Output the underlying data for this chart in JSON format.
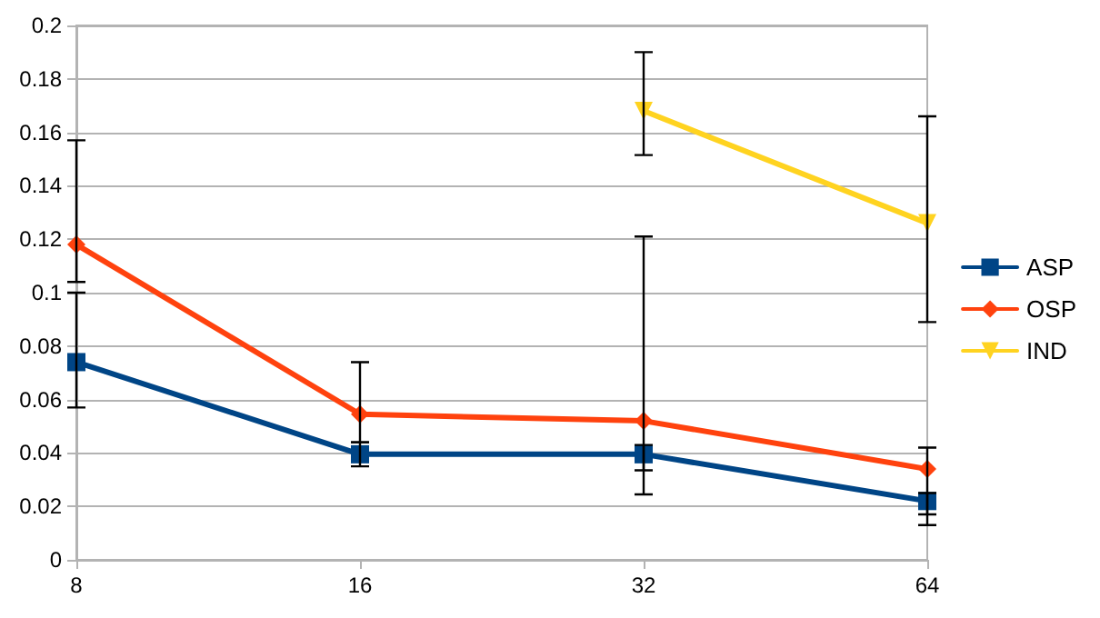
{
  "chart_data": {
    "type": "line",
    "categories": [
      "8",
      "16",
      "32",
      "64"
    ],
    "ylim": [
      0,
      0.2
    ],
    "yticks": [
      0,
      0.02,
      0.04,
      0.06,
      0.08,
      {
        "value": 0.1,
        "label": "0.1"
      },
      0.12,
      0.14,
      0.16,
      0.18,
      {
        "value": 0.2,
        "label": "0.2"
      }
    ],
    "grid": "y",
    "legend": "right",
    "line_style": "solid",
    "series": [
      {
        "name": "ASP",
        "color": "#004586",
        "marker": "square",
        "values": [
          0.074,
          0.0395,
          0.0395,
          0.022
        ],
        "errors": [
          [
            0.057,
            0.1
          ],
          [
            0.035,
            0.044
          ],
          [
            0.0335,
            0.043
          ],
          [
            0.013,
            0.025
          ]
        ]
      },
      {
        "name": "OSP",
        "color": "#ff420e",
        "marker": "diamond",
        "values": [
          0.118,
          0.0545,
          0.052,
          0.034
        ],
        "errors": [
          [
            0.104,
            0.157
          ],
          [
            0.044,
            0.074
          ],
          [
            0.0245,
            0.121
          ],
          [
            0.017,
            0.042
          ]
        ]
      },
      {
        "name": "IND",
        "color": "#ffd320",
        "marker": "triangle",
        "values": [
          null,
          null,
          0.168,
          0.126
        ],
        "errors": [
          null,
          null,
          [
            0.1515,
            0.19
          ],
          [
            0.089,
            0.166
          ]
        ]
      }
    ]
  }
}
